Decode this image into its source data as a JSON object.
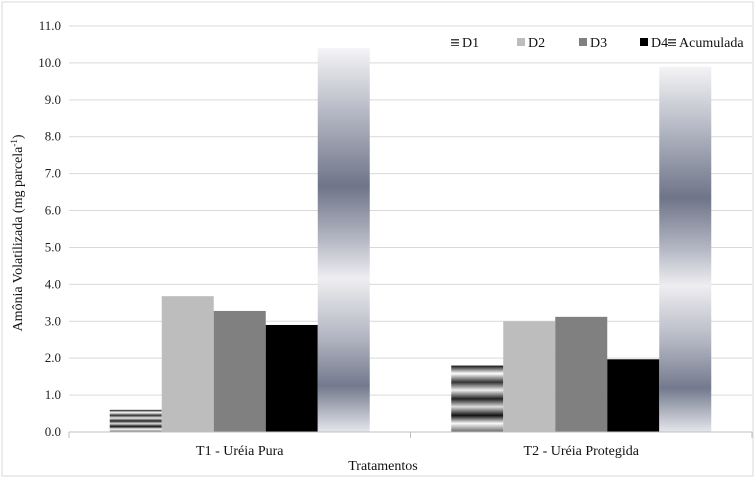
{
  "chart_data": {
    "type": "bar",
    "title": "",
    "xlabel": "Tratamentos",
    "ylabel": "Amônia Volatilizada (mg parcela-1)",
    "ylabel_main": "Amônia Volatilizada (mg parcela",
    "ylabel_sup": "-1",
    "ylabel_tail": ")",
    "ylim": [
      0,
      11
    ],
    "yticks": [
      "0.0",
      "1.0",
      "2.0",
      "3.0",
      "4.0",
      "5.0",
      "6.0",
      "7.0",
      "8.0",
      "9.0",
      "10.0",
      "11.0"
    ],
    "grid": true,
    "legend_position": "top-right",
    "categories": [
      "T1 - Uréia Pura",
      "T2 - Uréia Protegida"
    ],
    "series": [
      {
        "name": "D1",
        "values": [
          0.6,
          1.8
        ],
        "color": "#555555"
      },
      {
        "name": "D2",
        "values": [
          3.68,
          3.0
        ],
        "color": "#bdbdbd"
      },
      {
        "name": "D3",
        "values": [
          3.28,
          3.12
        ],
        "color": "#808080"
      },
      {
        "name": "D4",
        "values": [
          2.9,
          1.97
        ],
        "color": "#000000"
      },
      {
        "name": "Acumulada",
        "values": [
          10.4,
          9.9
        ],
        "color": "#6b7285"
      }
    ]
  }
}
